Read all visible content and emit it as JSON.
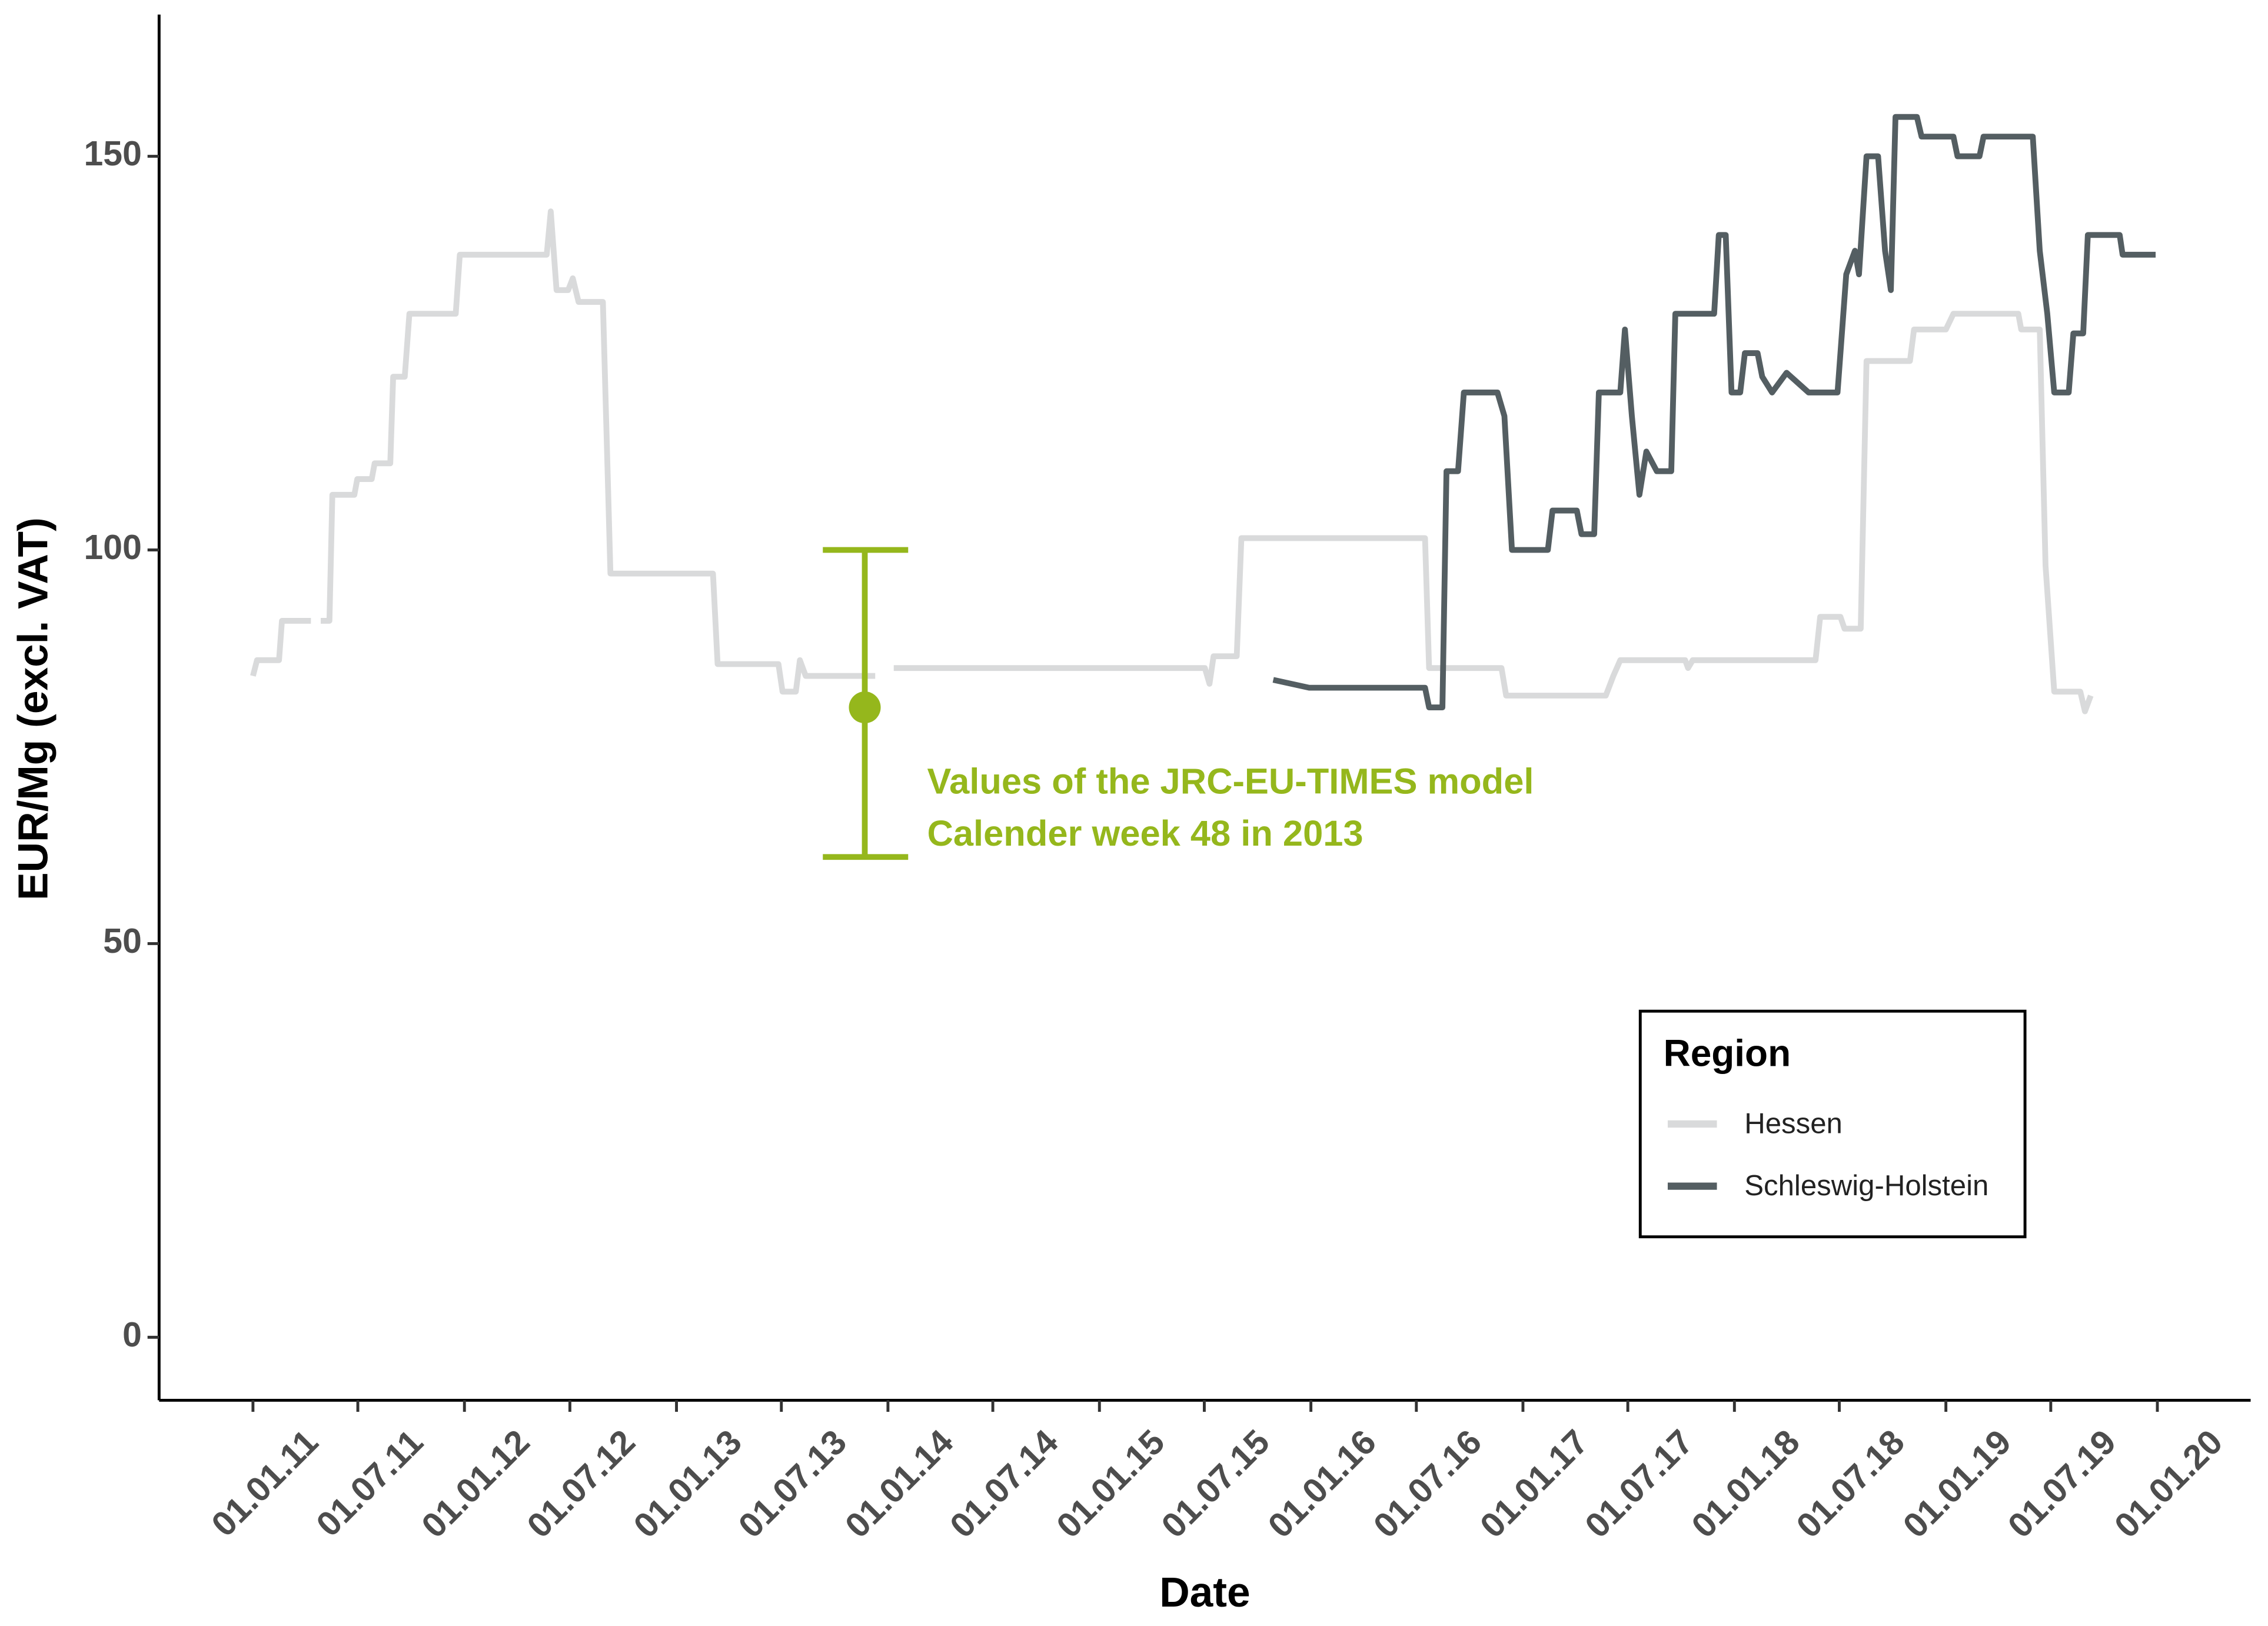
{
  "chart_data": {
    "type": "line",
    "x_label": "Date",
    "y_label": "EUR/Mg (excl. VAT)",
    "xlim": [
      "2010-07-23",
      "2020-06-10"
    ],
    "ylim": [
      -8,
      168
    ],
    "yticks": [
      0,
      50,
      100,
      150
    ],
    "xticks": [
      {
        "value": "2011-01-01",
        "label": "01.01.11"
      },
      {
        "value": "2011-07-01",
        "label": "01.07.11"
      },
      {
        "value": "2012-01-01",
        "label": "01.01.12"
      },
      {
        "value": "2012-07-01",
        "label": "01.07.12"
      },
      {
        "value": "2013-01-01",
        "label": "01.01.13"
      },
      {
        "value": "2013-07-01",
        "label": "01.07.13"
      },
      {
        "value": "2014-01-01",
        "label": "01.01.14"
      },
      {
        "value": "2014-07-01",
        "label": "01.07.14"
      },
      {
        "value": "2015-01-01",
        "label": "01.01.15"
      },
      {
        "value": "2015-07-01",
        "label": "01.07.15"
      },
      {
        "value": "2016-01-01",
        "label": "01.01.16"
      },
      {
        "value": "2016-07-01",
        "label": "01.07.16"
      },
      {
        "value": "2017-01-01",
        "label": "01.01.17"
      },
      {
        "value": "2017-07-01",
        "label": "01.07.17"
      },
      {
        "value": "2018-01-01",
        "label": "01.01.18"
      },
      {
        "value": "2018-07-01",
        "label": "01.07.18"
      },
      {
        "value": "2019-01-01",
        "label": "01.01.19"
      },
      {
        "value": "2019-07-01",
        "label": "01.07.19"
      },
      {
        "value": "2020-01-01",
        "label": "01.01.20"
      }
    ],
    "legend_title": "Region",
    "series": [
      {
        "name": "Hessen",
        "color": "#d9dadb",
        "x": [
          "2011-01-01",
          "2011-01-08",
          "2011-02-15",
          "2011-02-20",
          "2011-04-11",
          null,
          "2011-04-28",
          "2011-05-13",
          "2011-05-18",
          "2011-06-25",
          "2011-06-30",
          "2011-07-25",
          "2011-07-30",
          "2011-08-26",
          "2011-08-31",
          "2011-09-20",
          "2011-09-28",
          "2011-12-17",
          "2011-12-24",
          "2012-05-22",
          "2012-05-29",
          "2012-06-08",
          "2012-06-28",
          "2012-07-06",
          "2012-07-16",
          "2012-08-27",
          "2012-09-09",
          "2013-03-05",
          "2013-03-13",
          "2013-06-26",
          "2013-07-03",
          "2013-07-26",
          "2013-08-02",
          "2013-08-12",
          "2013-12-10",
          null,
          "2014-01-11",
          "2015-07-02",
          "2015-07-10",
          "2015-07-17",
          "2015-08-26",
          "2015-09-03",
          "2016-07-16",
          "2016-07-23",
          "2016-11-25",
          "2016-12-03",
          "2017-05-24",
          "2017-06-06",
          "2017-06-18",
          "2017-10-08",
          "2017-10-13",
          "2017-10-21",
          "2018-05-21",
          "2018-05-29",
          "2018-07-03",
          "2018-07-10",
          "2018-08-07",
          "2018-08-17",
          "2018-10-31",
          "2018-11-07",
          "2019-01-01",
          "2019-01-14",
          "2019-05-06",
          "2019-05-11",
          "2019-06-12",
          "2019-06-22",
          "2019-07-07",
          "2019-08-21",
          "2019-08-29",
          "2019-09-08"
        ],
        "values": [
          84,
          86,
          86,
          91,
          91,
          null,
          91,
          91,
          107,
          107,
          109,
          109,
          111,
          111,
          122,
          122,
          130,
          130,
          137.5,
          137.5,
          143,
          133,
          133,
          134.5,
          131.5,
          131.5,
          97,
          97,
          85.5,
          85.5,
          82,
          82,
          86,
          84,
          84,
          null,
          85,
          85,
          83,
          86.5,
          86.5,
          101.5,
          101.5,
          85,
          85,
          81.5,
          81.5,
          84,
          86,
          86,
          85,
          86,
          86,
          91.5,
          91.5,
          90,
          90,
          124,
          124,
          128,
          128,
          130,
          130,
          128,
          128,
          98,
          82,
          82,
          79.5,
          81.5
        ]
      },
      {
        "name": "Schleswig-Holstein",
        "color": "#545e62",
        "x": [
          "2015-10-28",
          "2015-12-29",
          "2016-07-16",
          "2016-07-23",
          "2016-08-15",
          "2016-08-22",
          "2016-09-11",
          "2016-09-21",
          "2016-11-18",
          "2016-11-30",
          "2016-12-13",
          "2017-02-13",
          "2017-02-21",
          "2017-04-04",
          "2017-04-12",
          "2017-05-04",
          "2017-05-12",
          "2017-06-18",
          "2017-06-26",
          "2017-07-08",
          "2017-07-21",
          "2017-08-02",
          "2017-08-20",
          "2017-09-14",
          "2017-09-21",
          "2017-11-27",
          "2017-12-05",
          "2017-12-17",
          "2017-12-27",
          "2018-01-11",
          "2018-01-19",
          "2018-02-10",
          "2018-02-18",
          "2018-03-07",
          "2018-04-01",
          "2018-05-09",
          "2018-06-28",
          "2018-07-13",
          "2018-07-28",
          "2018-08-04",
          "2018-08-17",
          "2018-09-06",
          "2018-09-18",
          "2018-09-28",
          "2018-10-06",
          "2018-11-12",
          "2018-11-20",
          "2019-01-14",
          "2019-01-21",
          "2019-02-28",
          "2019-03-07",
          "2019-05-31",
          "2019-06-12",
          "2019-06-25",
          "2019-07-07",
          "2019-08-01",
          "2019-08-09",
          "2019-08-26",
          "2019-09-03",
          "2019-10-28",
          "2019-11-02",
          "2019-12-29"
        ],
        "values": [
          83.5,
          82.5,
          82.5,
          80,
          80,
          110,
          110,
          120,
          120,
          117,
          100,
          100,
          105,
          105,
          102,
          102,
          120,
          120,
          128,
          117,
          107,
          112.5,
          110,
          110,
          130,
          130,
          140,
          140,
          120,
          120,
          125,
          125,
          122,
          120,
          122.5,
          120,
          120,
          135,
          138,
          135,
          150,
          150,
          138,
          133,
          155,
          155,
          152.5,
          152.5,
          150,
          150,
          152.5,
          152.5,
          138,
          130,
          120,
          120,
          127.5,
          127.5,
          140,
          140,
          137.5,
          137.5
        ]
      }
    ],
    "errorbar": {
      "x": "2013-11-22",
      "value": 80,
      "low": 61,
      "high": 100,
      "color": "#95b71c",
      "annotation": [
        "Values of the JRC-EU-TIMES model",
        "Calender week 48 in 2013"
      ]
    }
  }
}
